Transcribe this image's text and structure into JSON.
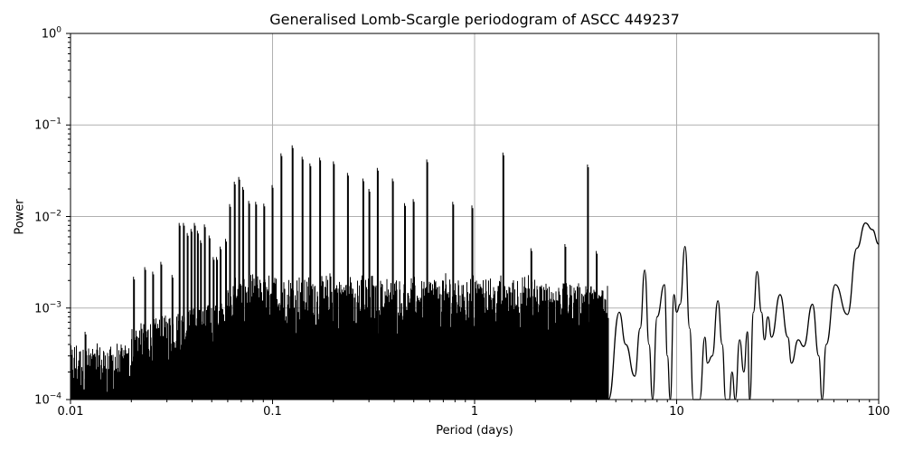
{
  "chart_data": {
    "type": "line",
    "title": "Generalised Lomb-Scargle periodogram of ASCC 449237",
    "xlabel": "Period (days)",
    "ylabel": "Power",
    "xscale": "log",
    "yscale": "log",
    "xlim": [
      0.01,
      100
    ],
    "ylim": [
      0.0001,
      1
    ],
    "grid": true,
    "line_color": "#000000",
    "grid_color": "#b0b0b0",
    "x_ticks": [
      "0.01",
      "0.1",
      "1",
      "10",
      "100"
    ],
    "y_ticks": [
      {
        "base": "10",
        "exp": "0"
      },
      {
        "base": "10",
        "exp": "−1"
      },
      {
        "base": "10",
        "exp": "−2"
      },
      {
        "base": "10",
        "exp": "−3"
      },
      {
        "base": "10",
        "exp": "−4"
      }
    ],
    "prominent_peaks": [
      {
        "period": 0.0118,
        "power": 0.00055
      },
      {
        "period": 0.0205,
        "power": 0.0022
      },
      {
        "period": 0.0233,
        "power": 0.0028
      },
      {
        "period": 0.0255,
        "power": 0.0025
      },
      {
        "period": 0.028,
        "power": 0.0032
      },
      {
        "period": 0.0318,
        "power": 0.0023
      },
      {
        "period": 0.0345,
        "power": 0.0085
      },
      {
        "period": 0.0362,
        "power": 0.0085
      },
      {
        "period": 0.0378,
        "power": 0.0066
      },
      {
        "period": 0.0395,
        "power": 0.0073
      },
      {
        "period": 0.041,
        "power": 0.0085
      },
      {
        "period": 0.0425,
        "power": 0.007
      },
      {
        "period": 0.044,
        "power": 0.0055
      },
      {
        "period": 0.046,
        "power": 0.0082
      },
      {
        "period": 0.0485,
        "power": 0.0062
      },
      {
        "period": 0.0508,
        "power": 0.0036
      },
      {
        "period": 0.0528,
        "power": 0.0036
      },
      {
        "period": 0.055,
        "power": 0.0047
      },
      {
        "period": 0.0585,
        "power": 0.0057
      },
      {
        "period": 0.0613,
        "power": 0.0137
      },
      {
        "period": 0.0647,
        "power": 0.024
      },
      {
        "period": 0.068,
        "power": 0.027
      },
      {
        "period": 0.0712,
        "power": 0.021
      },
      {
        "period": 0.0762,
        "power": 0.0148
      },
      {
        "period": 0.0825,
        "power": 0.0145
      },
      {
        "period": 0.0905,
        "power": 0.0138
      },
      {
        "period": 0.0995,
        "power": 0.022
      },
      {
        "period": 0.11,
        "power": 0.049
      },
      {
        "period": 0.125,
        "power": 0.06
      },
      {
        "period": 0.14,
        "power": 0.045
      },
      {
        "period": 0.153,
        "power": 0.038
      },
      {
        "period": 0.171,
        "power": 0.044
      },
      {
        "period": 0.2,
        "power": 0.04
      },
      {
        "period": 0.235,
        "power": 0.03
      },
      {
        "period": 0.28,
        "power": 0.026
      },
      {
        "period": 0.3,
        "power": 0.02
      },
      {
        "period": 0.33,
        "power": 0.034
      },
      {
        "period": 0.392,
        "power": 0.026
      },
      {
        "period": 0.45,
        "power": 0.014
      },
      {
        "period": 0.497,
        "power": 0.0155
      },
      {
        "period": 0.58,
        "power": 0.042
      },
      {
        "period": 0.779,
        "power": 0.0145
      },
      {
        "period": 0.97,
        "power": 0.0132
      },
      {
        "period": 1.38,
        "power": 0.05
      },
      {
        "period": 1.9,
        "power": 0.0045
      },
      {
        "period": 2.8,
        "power": 0.005
      },
      {
        "period": 3.62,
        "power": 0.037
      },
      {
        "period": 4.0,
        "power": 0.0042
      },
      {
        "period": 6.9,
        "power": 0.0026
      },
      {
        "period": 8.7,
        "power": 0.0018
      },
      {
        "period": 11.0,
        "power": 0.0047
      },
      {
        "period": 16.0,
        "power": 0.0012
      },
      {
        "period": 25.0,
        "power": 0.0025
      },
      {
        "period": 28.0,
        "power": 0.0008
      },
      {
        "period": 33.0,
        "power": 0.0014
      },
      {
        "period": 40.0,
        "power": 0.00045
      },
      {
        "period": 47.0,
        "power": 0.0011
      },
      {
        "period": 61.0,
        "power": 0.0018
      },
      {
        "period": 70.0,
        "power": 0.00085
      },
      {
        "period": 86.0,
        "power": 0.0085
      },
      {
        "period": 100.0,
        "power": 0.005
      }
    ],
    "long_period_curve": [
      [
        4.6,
        0.0001
      ],
      [
        5.2,
        0.0009
      ],
      [
        5.6,
        0.0004
      ],
      [
        6.2,
        0.00018
      ],
      [
        6.6,
        0.0006
      ],
      [
        6.95,
        0.0026
      ],
      [
        7.3,
        0.0004
      ],
      [
        7.6,
        0.0001
      ],
      [
        8.0,
        0.0008
      ],
      [
        8.7,
        0.0018
      ],
      [
        9.0,
        0.0003
      ],
      [
        9.3,
        0.0001
      ],
      [
        9.7,
        0.0014
      ],
      [
        10.0,
        0.0009
      ],
      [
        10.4,
        0.0011
      ],
      [
        11.0,
        0.0047
      ],
      [
        11.6,
        0.0006
      ],
      [
        12.1,
        0.0001
      ],
      [
        13.0,
        0.0001
      ],
      [
        13.8,
        0.00048
      ],
      [
        14.2,
        0.00025
      ],
      [
        15.0,
        0.0003
      ],
      [
        16.0,
        0.0012
      ],
      [
        16.8,
        0.0004
      ],
      [
        17.5,
        0.0001
      ],
      [
        18.2,
        0.0001
      ],
      [
        18.8,
        0.0002
      ],
      [
        19.5,
        0.0001
      ],
      [
        20.5,
        0.00045
      ],
      [
        21.5,
        0.0002
      ],
      [
        22.4,
        0.00055
      ],
      [
        23.0,
        0.0001
      ],
      [
        24.0,
        0.0009
      ],
      [
        25.0,
        0.0025
      ],
      [
        26.3,
        0.0009
      ],
      [
        27.2,
        0.00045
      ],
      [
        28.3,
        0.0008
      ],
      [
        29.5,
        0.00048
      ],
      [
        32.5,
        0.0014
      ],
      [
        35.5,
        0.00048
      ],
      [
        37.0,
        0.00025
      ],
      [
        40.0,
        0.00045
      ],
      [
        42.5,
        0.00038
      ],
      [
        47.0,
        0.0011
      ],
      [
        50.5,
        0.0003
      ],
      [
        52.5,
        0.0001
      ],
      [
        55.0,
        0.0004
      ],
      [
        61.0,
        0.0018
      ],
      [
        70.0,
        0.00085
      ],
      [
        78.0,
        0.0045
      ],
      [
        86.0,
        0.0085
      ],
      [
        93.0,
        0.0072
      ],
      [
        100.0,
        0.005
      ]
    ]
  }
}
